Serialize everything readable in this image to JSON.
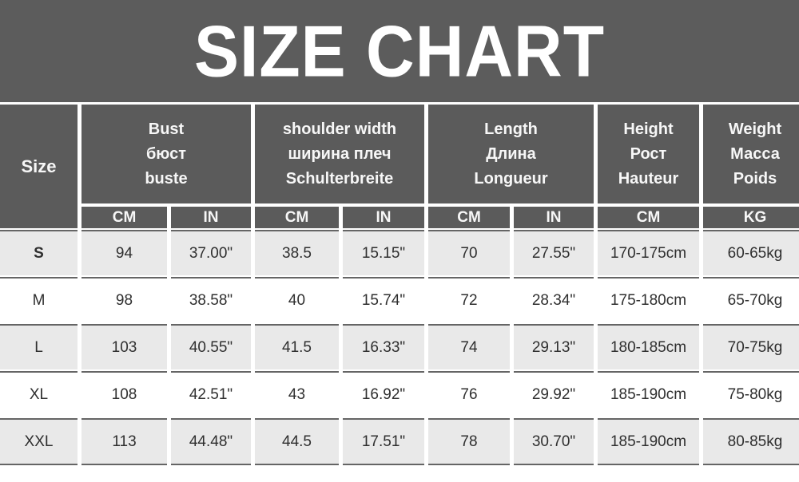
{
  "banner": {
    "title": "SIZE CHART"
  },
  "colors": {
    "banner_bg": "#5c5c5c",
    "header_bg": "#5b5b5b",
    "header_text": "#f7f7f7",
    "row_alt_bg": "#e9e9e9",
    "row_bg": "#ffffff",
    "row_separator": "#656565",
    "data_text": "#2f2f2f"
  },
  "chart_data": {
    "type": "table",
    "title": "SIZE CHART",
    "column_groups": [
      {
        "label_lines": [
          "Size"
        ],
        "units": []
      },
      {
        "label_lines": [
          "Bust",
          "бюст",
          "buste"
        ],
        "units": [
          "CM",
          "IN"
        ]
      },
      {
        "label_lines": [
          "shoulder width",
          "ширина плеч",
          "Schulterbreite"
        ],
        "units": [
          "CM",
          "IN"
        ]
      },
      {
        "label_lines": [
          "Length",
          "Длина",
          "Longueur"
        ],
        "units": [
          "CM",
          "IN"
        ]
      },
      {
        "label_lines": [
          "Height",
          "Рост",
          "Hauteur"
        ],
        "units": [
          "CM"
        ]
      },
      {
        "label_lines": [
          "Weight",
          "Масса",
          "Poids"
        ],
        "units": [
          "KG"
        ]
      }
    ],
    "rows": [
      {
        "size": "S",
        "values": [
          "94",
          "37.00\"",
          "38.5",
          "15.15\"",
          "70",
          "27.55\"",
          "170-175cm",
          "60-65kg"
        ]
      },
      {
        "size": "M",
        "values": [
          "98",
          "38.58\"",
          "40",
          "15.74\"",
          "72",
          "28.34\"",
          "175-180cm",
          "65-70kg"
        ]
      },
      {
        "size": "L",
        "values": [
          "103",
          "40.55\"",
          "41.5",
          "16.33\"",
          "74",
          "29.13\"",
          "180-185cm",
          "70-75kg"
        ]
      },
      {
        "size": "XL",
        "values": [
          "108",
          "42.51\"",
          "43",
          "16.92\"",
          "76",
          "29.92\"",
          "185-190cm",
          "75-80kg"
        ]
      },
      {
        "size": "XXL",
        "values": [
          "113",
          "44.48\"",
          "44.5",
          "17.51\"",
          "78",
          "30.70\"",
          "185-190cm",
          "80-85kg"
        ]
      }
    ]
  }
}
